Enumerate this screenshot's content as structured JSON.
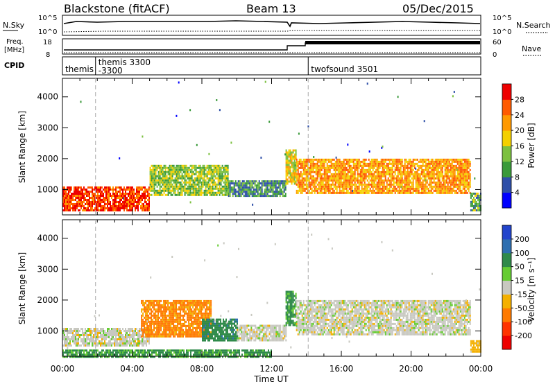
{
  "header": {
    "station": "Blackstone (fitACF)",
    "beam": "Beam 13",
    "date": "05/Dec/2015"
  },
  "noise_panel": {
    "left_label": "N.Sky",
    "right_label": "N.Search",
    "left_ticks": [
      "10^5",
      "10^0"
    ],
    "right_ticks": [
      "10^5",
      "10^0"
    ]
  },
  "freq_panel": {
    "left_label_1": "Freq.",
    "left_label_2": "[MHz]",
    "right_label": "Nave",
    "left_ticks": [
      "18",
      "8"
    ],
    "right_ticks": [
      "60",
      "0"
    ]
  },
  "cpid_panel": {
    "label": "CPID",
    "modes": [
      {
        "name": "themis",
        "start_hour": 0.0
      },
      {
        "name": "themis 3300\n-3300",
        "start_hour": 1.9
      },
      {
        "name": "twofsound 3501",
        "start_hour": 14.1
      }
    ]
  },
  "chart_data": [
    {
      "type": "heatmap",
      "panel": "power",
      "ylabel": "Slant Range [km]",
      "ylim": [
        180,
        4600
      ],
      "yticks": [
        "1000",
        "2000",
        "3000",
        "4000"
      ],
      "ytick_values": [
        1000,
        2000,
        3000,
        4000
      ],
      "xlim": [
        0,
        24
      ],
      "colorbar": {
        "label": "Power [dB]",
        "ticks": [
          "4",
          "8",
          "12",
          "16",
          "20",
          "24",
          "28"
        ],
        "colors": [
          "#0000ff",
          "#2e4fa8",
          "#3a9a3a",
          "#7cc040",
          "#f4d000",
          "#ff9900",
          "#ff5a00",
          "#ee0000"
        ],
        "range": [
          0,
          32
        ]
      },
      "echo_regions": [
        {
          "t0": 0.0,
          "t1": 5.0,
          "r0": 300,
          "r1": 1100,
          "level": 28
        },
        {
          "t0": 5.0,
          "t1": 9.5,
          "r0": 800,
          "r1": 1800,
          "level": 14
        },
        {
          "t0": 9.5,
          "t1": 12.8,
          "r0": 800,
          "r1": 1300,
          "level": 10
        },
        {
          "t0": 12.8,
          "t1": 13.4,
          "r0": 1200,
          "r1": 2300,
          "level": 18
        },
        {
          "t0": 13.4,
          "t1": 23.4,
          "r0": 900,
          "r1": 2000,
          "level": 22
        },
        {
          "t0": 23.4,
          "t1": 24.0,
          "r0": 300,
          "r1": 900,
          "level": 12
        }
      ]
    },
    {
      "type": "heatmap",
      "panel": "velocity",
      "ylabel": "Slant Range [km]",
      "ylim": [
        180,
        4600
      ],
      "yticks": [
        "1000",
        "2000",
        "3000",
        "4000"
      ],
      "ytick_values": [
        1000,
        2000,
        3000,
        4000
      ],
      "xlim": [
        0,
        24
      ],
      "xlabel": "Time UT",
      "xticks": [
        "00:00",
        "04:00",
        "08:00",
        "12:00",
        "16:00",
        "20:00",
        "00:00"
      ],
      "xtick_values": [
        0,
        4,
        8,
        12,
        16,
        20,
        24
      ],
      "colorbar": {
        "label": "Velocity [m s⁻¹]",
        "ticks": [
          "200",
          "100",
          "50",
          "15",
          "-15",
          "-50",
          "-100",
          "-200"
        ],
        "colors": [
          "#2244cc",
          "#2e6fb0",
          "#2f8a4a",
          "#66cc33",
          "#c8c8c0",
          "#f4b000",
          "#ff7a00",
          "#ff3300",
          "#ee0000"
        ]
      },
      "echo_regions": [
        {
          "t0": 0.0,
          "t1": 5.0,
          "r0": 500,
          "r1": 1100,
          "level": 0
        },
        {
          "t0": 4.5,
          "t1": 8.5,
          "r0": 800,
          "r1": 2000,
          "level": -60
        },
        {
          "t0": 8.0,
          "t1": 10.0,
          "r0": 700,
          "r1": 1400,
          "level": 60
        },
        {
          "t0": 10.0,
          "t1": 12.8,
          "r0": 700,
          "r1": 1200,
          "level": 0
        },
        {
          "t0": 12.8,
          "t1": 13.4,
          "r0": 1200,
          "r1": 2300,
          "level": 40
        },
        {
          "t0": 13.4,
          "t1": 23.4,
          "r0": 900,
          "r1": 2000,
          "level": 0
        },
        {
          "t0": 0.0,
          "t1": 12.0,
          "r0": 180,
          "r1": 400,
          "level": 40
        },
        {
          "t0": 23.4,
          "t1": 24.0,
          "r0": 300,
          "r1": 700,
          "level": -30
        }
      ]
    }
  ]
}
